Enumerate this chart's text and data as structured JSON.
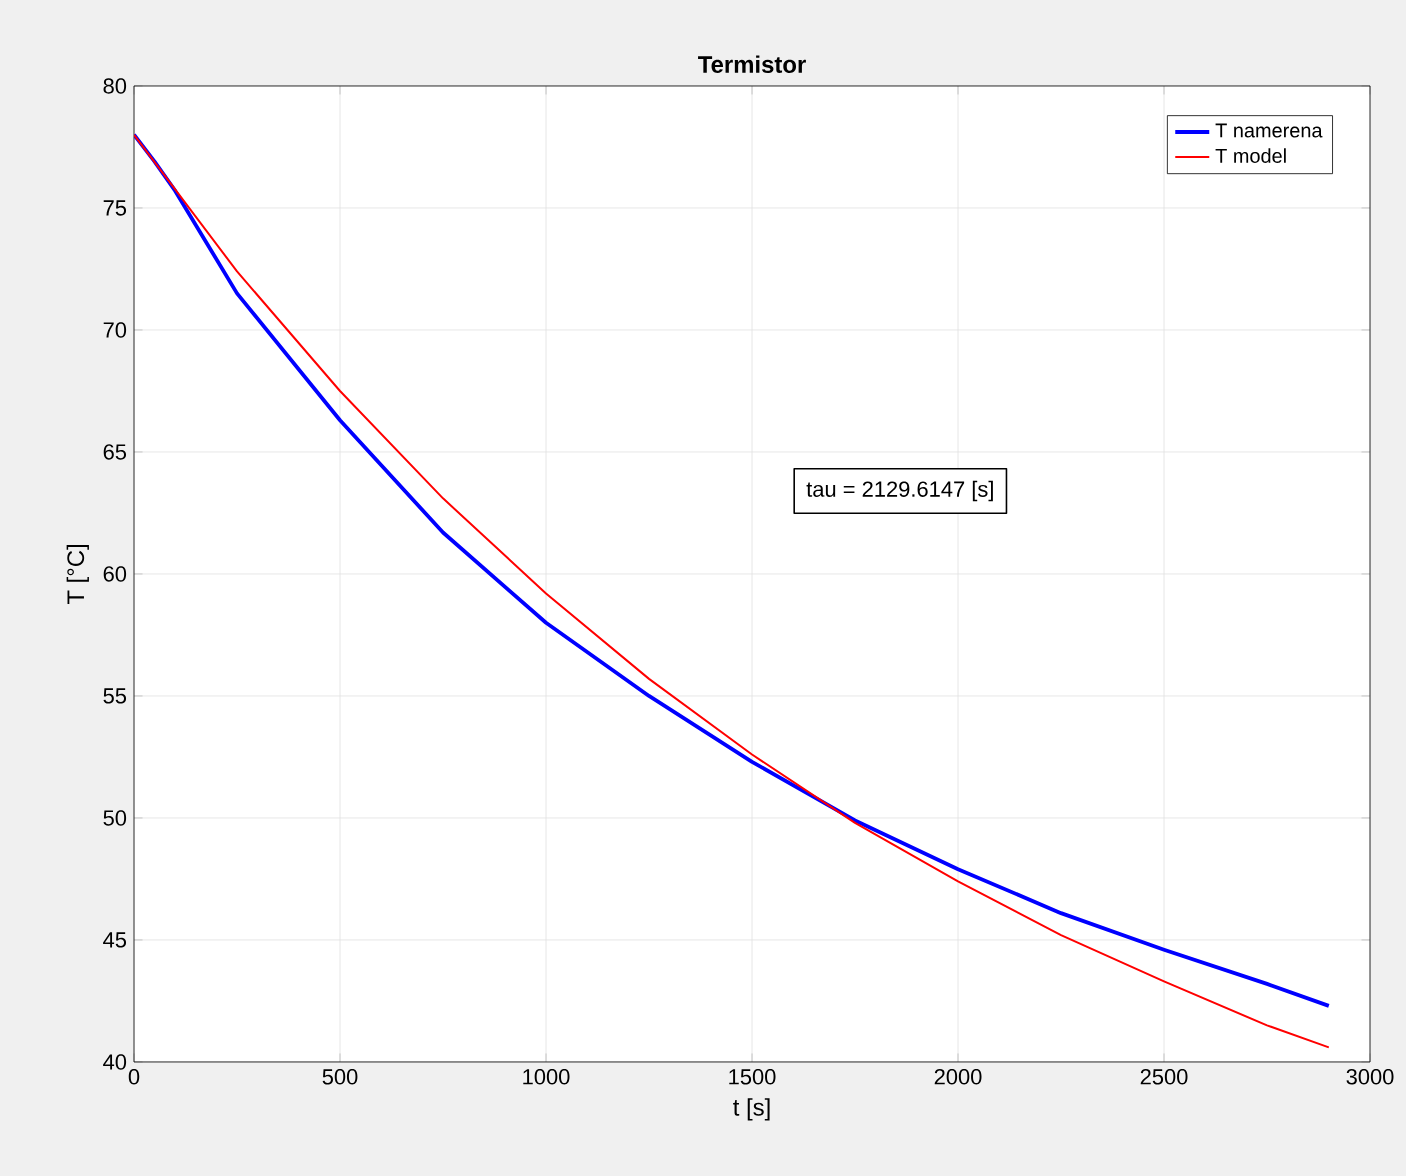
{
  "chart_data": {
    "type": "line",
    "title": "Termistor",
    "xlabel": "t [s]",
    "ylabel": "T [°C]",
    "xlim": [
      0,
      3000
    ],
    "ylim": [
      40,
      80
    ],
    "xticks": [
      0,
      500,
      1000,
      1500,
      2000,
      2500,
      3000
    ],
    "yticks": [
      40,
      45,
      50,
      55,
      60,
      65,
      70,
      75,
      80
    ],
    "grid": true,
    "legend": "top right",
    "annotations": [
      "tau = 2129.6147 [s]"
    ],
    "series": [
      {
        "name": "T namerena",
        "color": "#0000ff",
        "x": [
          0,
          50,
          100,
          250,
          500,
          750,
          1000,
          1250,
          1500,
          1750,
          2000,
          2250,
          2500,
          2750,
          2900
        ],
        "values": [
          78,
          76.9,
          75.7,
          71.5,
          66.3,
          61.7,
          58.0,
          55.0,
          52.3,
          49.9,
          47.9,
          46.1,
          44.6,
          43.2,
          42.3
        ]
      },
      {
        "name": "T model",
        "color": "#ff0000",
        "x": [
          0,
          250,
          500,
          750,
          1000,
          1250,
          1500,
          1750,
          2000,
          2250,
          2500,
          2750,
          2900
        ],
        "values": [
          78,
          72.4,
          67.5,
          63.1,
          59.2,
          55.7,
          52.6,
          49.8,
          47.4,
          45.2,
          43.3,
          41.5,
          40.6
        ]
      }
    ]
  }
}
